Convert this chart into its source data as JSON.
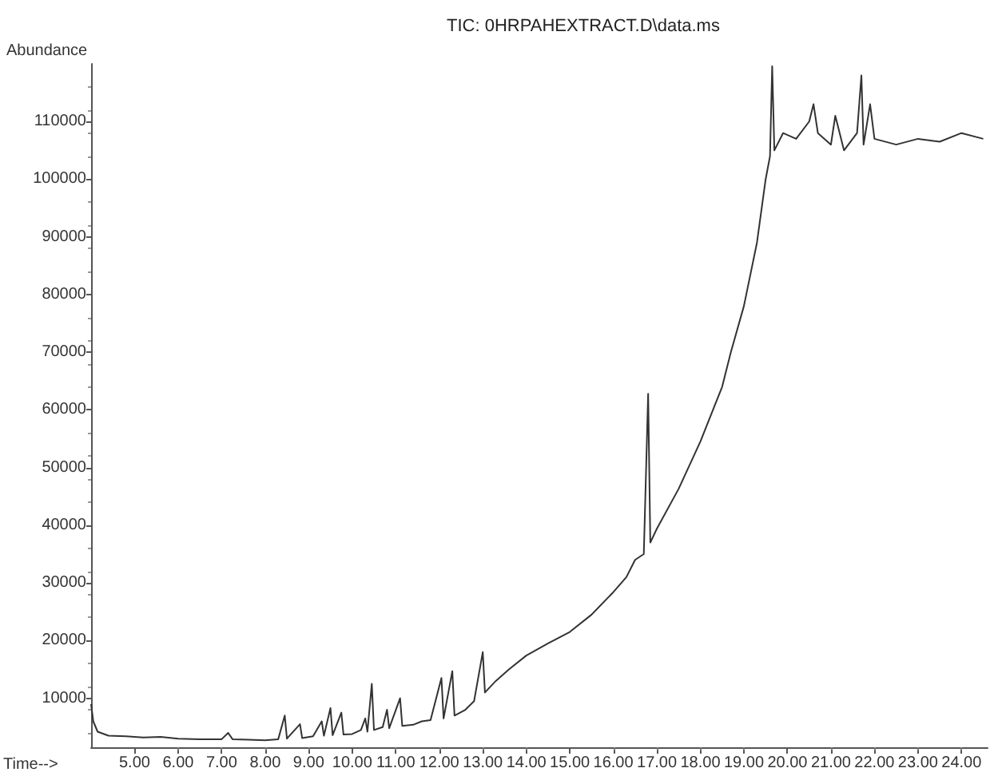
{
  "chart_data": {
    "type": "line",
    "title": "TIC: 0HRPAHEXTRACT.D\\data.ms",
    "xlabel": "Time-->",
    "ylabel": "Abundance",
    "xlim": [
      4.0,
      24.6
    ],
    "ylim": [
      1500,
      120000
    ],
    "xticks": [
      {
        "value": 5,
        "label": "5.00"
      },
      {
        "value": 6,
        "label": "6.00"
      },
      {
        "value": 7,
        "label": "7.00"
      },
      {
        "value": 8,
        "label": "8.00"
      },
      {
        "value": 9,
        "label": "9.00"
      },
      {
        "value": 10,
        "label": "10.00"
      },
      {
        "value": 11,
        "label": "11.00"
      },
      {
        "value": 12,
        "label": "12.00"
      },
      {
        "value": 13,
        "label": "13.00"
      },
      {
        "value": 14,
        "label": "14.00"
      },
      {
        "value": 15,
        "label": "15.00"
      },
      {
        "value": 16,
        "label": "16.00"
      },
      {
        "value": 17,
        "label": "17.00"
      },
      {
        "value": 18,
        "label": "18.00"
      },
      {
        "value": 19,
        "label": "19.00"
      },
      {
        "value": 20,
        "label": "20.00"
      },
      {
        "value": 21,
        "label": "21.00"
      },
      {
        "value": 22,
        "label": "22.00"
      },
      {
        "value": 23,
        "label": "23.00"
      },
      {
        "value": 24,
        "label": "24.00"
      }
    ],
    "yticks": [
      10000,
      20000,
      30000,
      40000,
      50000,
      60000,
      70000,
      80000,
      90000,
      100000,
      110000
    ],
    "grid": false,
    "marker": "none",
    "line_style": "solid",
    "x": [
      4.0,
      4.05,
      4.15,
      4.4,
      4.8,
      5.2,
      5.6,
      6.0,
      6.5,
      7.0,
      7.15,
      7.25,
      7.6,
      8.0,
      8.3,
      8.45,
      8.5,
      8.8,
      8.85,
      9.1,
      9.3,
      9.35,
      9.5,
      9.55,
      9.75,
      9.8,
      10.0,
      10.2,
      10.3,
      10.35,
      10.45,
      10.5,
      10.7,
      10.8,
      10.85,
      11.1,
      11.15,
      11.4,
      11.6,
      11.8,
      12.05,
      12.1,
      12.3,
      12.35,
      12.6,
      12.8,
      13.0,
      13.05,
      13.3,
      13.6,
      14.0,
      14.5,
      15.0,
      15.5,
      16.0,
      16.3,
      16.5,
      16.7,
      16.8,
      16.85,
      17.0,
      17.5,
      18.0,
      18.5,
      18.7,
      19.0,
      19.3,
      19.5,
      19.6,
      19.65,
      19.7,
      19.9,
      20.2,
      20.5,
      20.6,
      20.7,
      21.0,
      21.1,
      21.3,
      21.6,
      21.7,
      21.75,
      21.9,
      22.0,
      22.5,
      23.0,
      23.5,
      24.0,
      24.5
    ],
    "series": [
      {
        "color": "#333333",
        "values": [
          9000,
          6000,
          4200,
          3500,
          3400,
          3200,
          3300,
          3000,
          2900,
          2900,
          4000,
          2900,
          2800,
          2700,
          2900,
          7000,
          3000,
          5500,
          3100,
          3400,
          6000,
          3500,
          8300,
          3600,
          7500,
          3700,
          3800,
          4500,
          6500,
          4200,
          12500,
          4500,
          5000,
          8000,
          4800,
          10000,
          5200,
          5400,
          6000,
          6200,
          13500,
          6500,
          14700,
          7000,
          8000,
          9500,
          18000,
          11000,
          13000,
          15000,
          17400,
          19500,
          21500,
          24500,
          28400,
          31000,
          34000,
          35000,
          62800,
          37000,
          39400,
          46300,
          54500,
          64000,
          70000,
          78000,
          89000,
          100000,
          104000,
          119600,
          105000,
          108000,
          107000,
          110000,
          113000,
          108000,
          106000,
          111000,
          105000,
          108000,
          118000,
          106000,
          113000,
          107000,
          106000,
          107000,
          106500,
          108000,
          107000
        ]
      }
    ]
  }
}
